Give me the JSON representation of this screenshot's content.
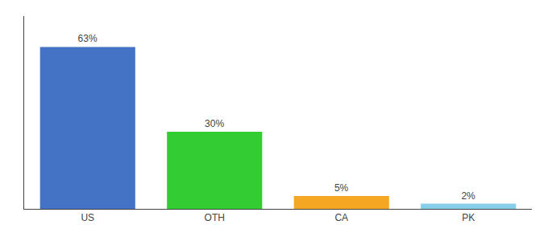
{
  "chart_data": {
    "type": "bar",
    "categories": [
      "US",
      "OTH",
      "CA",
      "PK"
    ],
    "values": [
      63,
      30,
      5,
      2
    ],
    "value_labels": [
      "63%",
      "30%",
      "5%",
      "2%"
    ],
    "colors": [
      "#4472c4",
      "#33cc33",
      "#f5a623",
      "#87ceeb"
    ],
    "data_labels": true,
    "ylim": [
      0,
      75
    ],
    "grid": false,
    "tick_labels": "x"
  }
}
